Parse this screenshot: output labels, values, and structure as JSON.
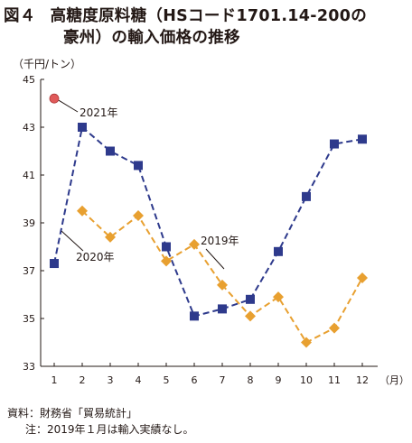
{
  "figure": {
    "number": "図４",
    "title_line1": "高糖度原料糖（HSコード1701.14-200の",
    "title_line2": "豪州）の輸入価格の推移",
    "source": "資料：財務省「貿易統計」",
    "note": "注：2019年１月は輸入実績なし。"
  },
  "chart_data": {
    "type": "line",
    "title": "高糖度原料糖（HSコード1701.14-200の豪州）の輸入価格の推移",
    "ylabel": "（千円/トン）",
    "xlabel": "（月）",
    "x": [
      1,
      2,
      3,
      4,
      5,
      6,
      7,
      8,
      9,
      10,
      11,
      12
    ],
    "x_tick_labels": [
      "1",
      "2",
      "3",
      "4",
      "5",
      "6",
      "7",
      "8",
      "9",
      "10",
      "11",
      "12"
    ],
    "y_tick_labels": [
      "33",
      "35",
      "37",
      "39",
      "41",
      "43",
      "45"
    ],
    "ylim": [
      33,
      45
    ],
    "grid": false,
    "series": [
      {
        "name": "2020年",
        "color": "#2e3a8c",
        "marker": "square",
        "dash": "dashed",
        "values": [
          37.3,
          43.0,
          42.0,
          41.4,
          38.0,
          35.1,
          35.4,
          35.8,
          37.8,
          40.1,
          42.3,
          42.5
        ]
      },
      {
        "name": "2019年",
        "color": "#e8a030",
        "marker": "diamond",
        "dash": "dashed",
        "values": [
          null,
          39.5,
          38.4,
          39.3,
          37.4,
          38.1,
          36.4,
          35.1,
          35.9,
          34.0,
          34.6,
          36.7
        ]
      },
      {
        "name": "2021年",
        "color": "#e05a5a",
        "marker": "circle",
        "dash": "none",
        "values": [
          44.2,
          null,
          null,
          null,
          null,
          null,
          null,
          null,
          null,
          null,
          null,
          null
        ]
      }
    ]
  }
}
